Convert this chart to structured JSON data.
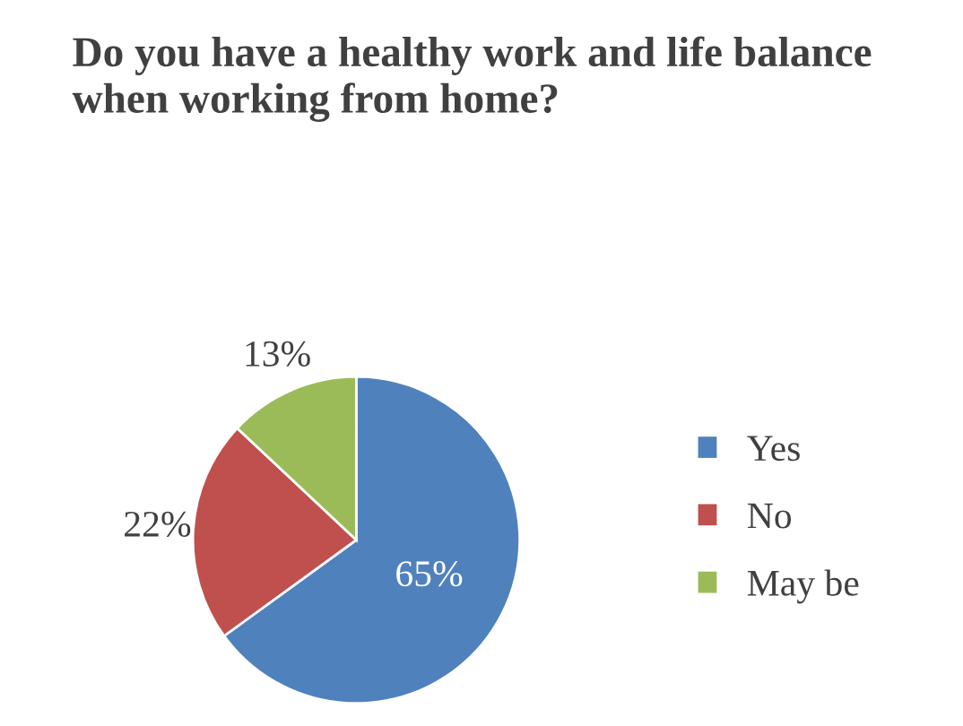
{
  "chart_data": {
    "type": "pie",
    "title": "Do you have a healthy work and life balance when working from home?",
    "categories": [
      "Yes",
      "No",
      "May be"
    ],
    "values": [
      65,
      22,
      13
    ],
    "value_labels": [
      "65%",
      "22%",
      "13%"
    ],
    "colors": [
      "#4f81bd",
      "#c0504d",
      "#9bbb59"
    ],
    "legend": "right"
  }
}
